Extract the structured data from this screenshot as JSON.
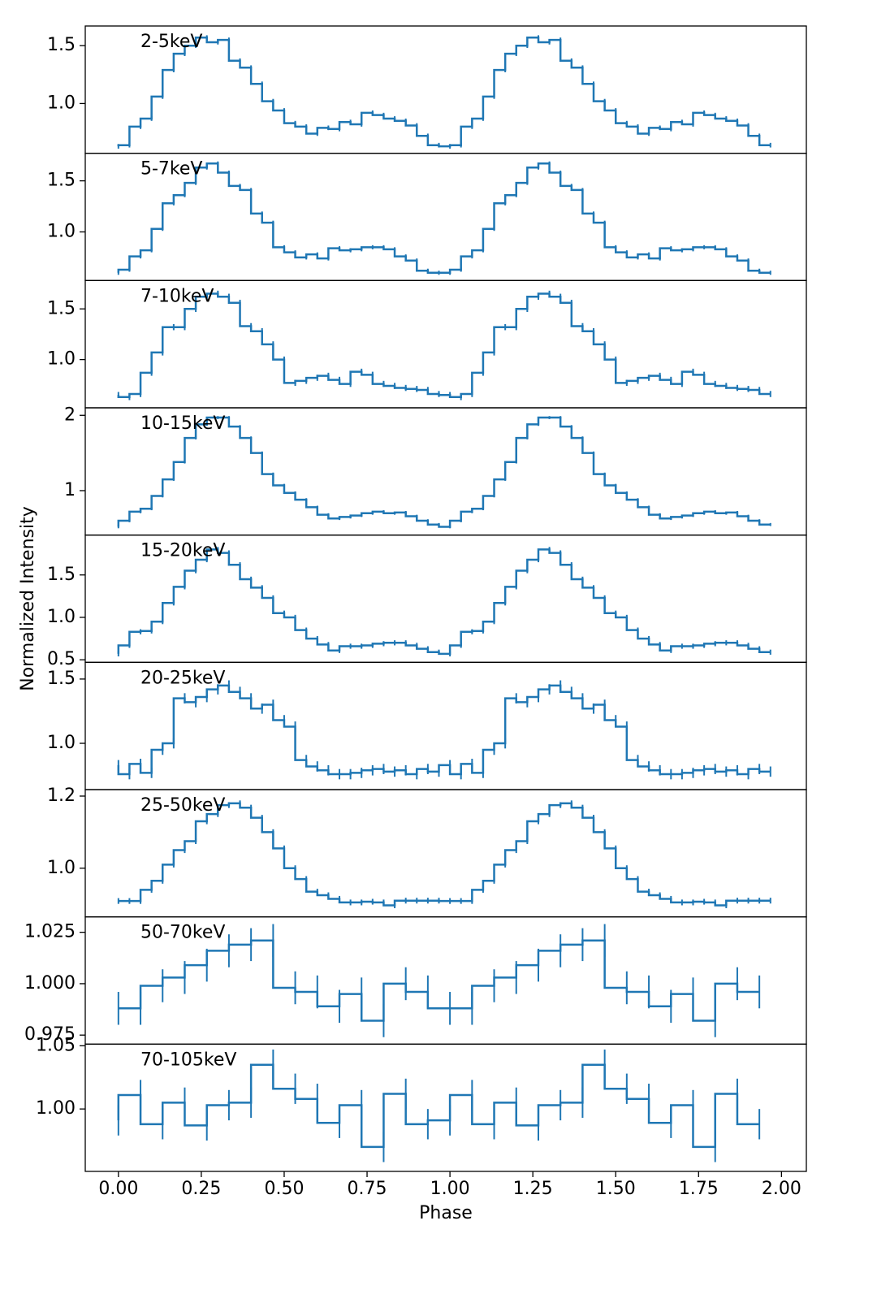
{
  "chart_data": [
    {
      "type": "step",
      "label": "2-5keV",
      "color": "#1f77b4",
      "ylabel": "Normalized Intensity",
      "x": [
        0,
        0.0333,
        0.0667,
        0.1,
        0.1333,
        0.1667,
        0.2,
        0.2333,
        0.2667,
        0.3,
        0.3333,
        0.3667,
        0.4,
        0.4333,
        0.4667,
        0.5,
        0.5333,
        0.5667,
        0.6,
        0.6333,
        0.6667,
        0.7,
        0.7333,
        0.7667,
        0.8,
        0.8333,
        0.8667,
        0.9,
        0.9333,
        0.9667,
        1,
        1.0333,
        1.0667,
        1.1,
        1.1333,
        1.1667,
        1.2,
        1.2333,
        1.2667,
        1.3,
        1.3333,
        1.3667,
        1.4,
        1.4333,
        1.4667,
        1.5,
        1.5333,
        1.5667,
        1.6,
        1.6333,
        1.6667,
        1.7,
        1.7333,
        1.7667,
        1.8,
        1.8333,
        1.8667,
        1.9,
        1.9333,
        1.9667
      ],
      "values": [
        0.63,
        0.64,
        0.8,
        0.87,
        1.06,
        1.29,
        1.43,
        1.5,
        1.57,
        1.53,
        1.55,
        1.37,
        1.31,
        1.17,
        1.02,
        0.94,
        0.83,
        0.8,
        0.74,
        0.79,
        0.78,
        0.84,
        0.82,
        0.92,
        0.9,
        0.87,
        0.85,
        0.81,
        0.72,
        0.64,
        0.63,
        0.64,
        0.8,
        0.87,
        1.06,
        1.29,
        1.43,
        1.5,
        1.57,
        1.53,
        1.55,
        1.37,
        1.31,
        1.17,
        1.02,
        0.94,
        0.83,
        0.8,
        0.74,
        0.79,
        0.78,
        0.84,
        0.82,
        0.92,
        0.9,
        0.87,
        0.85,
        0.81,
        0.72,
        0.64
      ],
      "yerr": 0.02,
      "ylim": [
        0.57,
        1.67
      ],
      "yticks": [
        {
          "value": 1,
          "label": "1.0"
        },
        1.5
      ]
    },
    {
      "type": "step",
      "label": "5-7keV",
      "color": "#1f77b4",
      "x": [
        0,
        0.0333,
        0.0667,
        0.1,
        0.1333,
        0.1667,
        0.2,
        0.2333,
        0.2667,
        0.3,
        0.3333,
        0.3667,
        0.4,
        0.4333,
        0.4667,
        0.5,
        0.5333,
        0.5667,
        0.6,
        0.6333,
        0.6667,
        0.7,
        0.7333,
        0.7667,
        0.8,
        0.8333,
        0.8667,
        0.9,
        0.9333,
        0.9667,
        1,
        1.0333,
        1.0667,
        1.1,
        1.1333,
        1.1667,
        1.2,
        1.2333,
        1.2667,
        1.3,
        1.3333,
        1.3667,
        1.4,
        1.4333,
        1.4667,
        1.5,
        1.5333,
        1.5667,
        1.6,
        1.6333,
        1.6667,
        1.7,
        1.7333,
        1.7667,
        1.8,
        1.8333,
        1.8667,
        1.9,
        1.9333,
        1.9667
      ],
      "values": [
        0.6,
        0.63,
        0.76,
        0.82,
        1.03,
        1.28,
        1.36,
        1.48,
        1.63,
        1.67,
        1.58,
        1.45,
        1.41,
        1.18,
        1.09,
        0.85,
        0.8,
        0.75,
        0.78,
        0.74,
        0.84,
        0.82,
        0.83,
        0.85,
        0.85,
        0.83,
        0.76,
        0.72,
        0.62,
        0.6,
        0.6,
        0.63,
        0.76,
        0.82,
        1.03,
        1.28,
        1.36,
        1.48,
        1.63,
        1.67,
        1.58,
        1.45,
        1.41,
        1.18,
        1.09,
        0.85,
        0.8,
        0.75,
        0.78,
        0.74,
        0.84,
        0.82,
        0.83,
        0.85,
        0.85,
        0.83,
        0.76,
        0.72,
        0.62,
        0.6
      ],
      "yerr": 0.02,
      "ylim": [
        0.524,
        1.77
      ],
      "yticks": [
        {
          "value": 1,
          "label": "1.0"
        },
        1.5
      ]
    },
    {
      "type": "step",
      "label": "7-10keV",
      "color": "#1f77b4",
      "x": [
        0,
        0.0333,
        0.0667,
        0.1,
        0.1333,
        0.1667,
        0.2,
        0.2333,
        0.2667,
        0.3,
        0.3333,
        0.3667,
        0.4,
        0.4333,
        0.4667,
        0.5,
        0.5333,
        0.5667,
        0.6,
        0.6333,
        0.6667,
        0.7,
        0.7333,
        0.7667,
        0.8,
        0.8333,
        0.8667,
        0.9,
        0.9333,
        0.9667,
        1,
        1.0333,
        1.0667,
        1.1,
        1.1333,
        1.1667,
        1.2,
        1.2333,
        1.2667,
        1.3,
        1.3333,
        1.3667,
        1.4,
        1.4333,
        1.4667,
        1.5,
        1.5333,
        1.5667,
        1.6,
        1.6333,
        1.6667,
        1.7,
        1.7333,
        1.7667,
        1.8,
        1.8333,
        1.8667,
        1.9,
        1.9333,
        1.9667
      ],
      "values": [
        0.65,
        0.63,
        0.66,
        0.87,
        1.07,
        1.32,
        1.32,
        1.5,
        1.62,
        1.65,
        1.62,
        1.56,
        1.33,
        1.28,
        1.15,
        1.0,
        0.77,
        0.79,
        0.82,
        0.84,
        0.8,
        0.76,
        0.88,
        0.85,
        0.76,
        0.74,
        0.72,
        0.71,
        0.7,
        0.66,
        0.65,
        0.63,
        0.66,
        0.87,
        1.07,
        1.32,
        1.32,
        1.5,
        1.62,
        1.65,
        1.62,
        1.56,
        1.33,
        1.28,
        1.15,
        1.0,
        0.77,
        0.79,
        0.82,
        0.84,
        0.8,
        0.76,
        0.88,
        0.85,
        0.76,
        0.74,
        0.72,
        0.71,
        0.7,
        0.66
      ],
      "yerr": 0.03,
      "ylim": [
        0.524,
        1.78
      ],
      "yticks": [
        {
          "value": 1,
          "label": "1.0"
        },
        1.5
      ]
    },
    {
      "type": "step",
      "label": "10-15keV",
      "color": "#1f77b4",
      "x": [
        0,
        0.0333,
        0.0667,
        0.1,
        0.1333,
        0.1667,
        0.2,
        0.2333,
        0.2667,
        0.3,
        0.3333,
        0.3667,
        0.4,
        0.4333,
        0.4667,
        0.5,
        0.5333,
        0.5667,
        0.6,
        0.6333,
        0.6667,
        0.7,
        0.7333,
        0.7667,
        0.8,
        0.8333,
        0.8667,
        0.9,
        0.9333,
        0.9667,
        1,
        1.0333,
        1.0667,
        1.1,
        1.1333,
        1.1667,
        1.2,
        1.2333,
        1.2667,
        1.3,
        1.3333,
        1.3667,
        1.4,
        1.4333,
        1.4667,
        1.5,
        1.5333,
        1.5667,
        1.6,
        1.6333,
        1.6667,
        1.7,
        1.7333,
        1.7667,
        1.8,
        1.8333,
        1.8667,
        1.9,
        1.9333,
        1.9667
      ],
      "values": [
        0.52,
        0.6,
        0.72,
        0.76,
        0.93,
        1.15,
        1.38,
        1.7,
        1.88,
        1.97,
        1.97,
        1.85,
        1.7,
        1.5,
        1.22,
        1.07,
        0.97,
        0.88,
        0.78,
        0.68,
        0.63,
        0.65,
        0.67,
        0.7,
        0.72,
        0.7,
        0.71,
        0.66,
        0.6,
        0.55,
        0.52,
        0.6,
        0.72,
        0.76,
        0.93,
        1.15,
        1.38,
        1.7,
        1.88,
        1.97,
        1.97,
        1.85,
        1.7,
        1.5,
        1.22,
        1.07,
        0.97,
        0.88,
        0.78,
        0.68,
        0.63,
        0.65,
        0.67,
        0.7,
        0.72,
        0.7,
        0.71,
        0.66,
        0.6,
        0.55
      ],
      "yerr": 0.02,
      "ylim": [
        0.41,
        2.1
      ],
      "yticks": [
        1,
        2
      ]
    },
    {
      "type": "step",
      "label": "15-20keV",
      "color": "#1f77b4",
      "x": [
        0,
        0.0333,
        0.0667,
        0.1,
        0.1333,
        0.1667,
        0.2,
        0.2333,
        0.2667,
        0.3,
        0.3333,
        0.3667,
        0.4,
        0.4333,
        0.4667,
        0.5,
        0.5333,
        0.5667,
        0.6,
        0.6333,
        0.6667,
        0.7,
        0.7333,
        0.7667,
        0.8,
        0.8333,
        0.8667,
        0.9,
        0.9333,
        0.9667,
        1,
        1.0333,
        1.0667,
        1.1,
        1.1333,
        1.1667,
        1.2,
        1.2333,
        1.2667,
        1.3,
        1.3333,
        1.3667,
        1.4,
        1.4333,
        1.4667,
        1.5,
        1.5333,
        1.5667,
        1.6,
        1.6333,
        1.6667,
        1.7,
        1.7333,
        1.7667,
        1.8,
        1.8333,
        1.8667,
        1.9,
        1.9333,
        1.9667
      ],
      "values": [
        0.57,
        0.67,
        0.83,
        0.84,
        0.95,
        1.17,
        1.36,
        1.55,
        1.68,
        1.8,
        1.76,
        1.62,
        1.45,
        1.35,
        1.23,
        1.05,
        1.0,
        0.85,
        0.75,
        0.68,
        0.61,
        0.66,
        0.66,
        0.67,
        0.69,
        0.7,
        0.7,
        0.67,
        0.63,
        0.59,
        0.57,
        0.67,
        0.83,
        0.84,
        0.95,
        1.17,
        1.36,
        1.55,
        1.68,
        1.8,
        1.76,
        1.62,
        1.45,
        1.35,
        1.23,
        1.05,
        1.0,
        0.85,
        0.75,
        0.68,
        0.61,
        0.66,
        0.66,
        0.67,
        0.69,
        0.7,
        0.7,
        0.67,
        0.63,
        0.59
      ],
      "yerr": 0.03,
      "ylim": [
        0.47,
        1.97
      ],
      "yticks": [
        0.5,
        {
          "value": 1,
          "label": "1.0"
        },
        1.5
      ]
    },
    {
      "type": "step",
      "label": "20-25keV",
      "color": "#1f77b4",
      "x": [
        0,
        0.0333,
        0.0667,
        0.1,
        0.1333,
        0.1667,
        0.2,
        0.2333,
        0.2667,
        0.3,
        0.3333,
        0.3667,
        0.4,
        0.4333,
        0.4667,
        0.5,
        0.5333,
        0.5667,
        0.6,
        0.6333,
        0.6667,
        0.7,
        0.7333,
        0.7667,
        0.8,
        0.8333,
        0.8667,
        0.9,
        0.9333,
        0.9667,
        1,
        1.0333,
        1.0667,
        1.1,
        1.1333,
        1.1667,
        1.2,
        1.2333,
        1.2667,
        1.3,
        1.3333,
        1.3667,
        1.4,
        1.4333,
        1.4667,
        1.5,
        1.5333,
        1.5667,
        1.6,
        1.6333,
        1.6667,
        1.7,
        1.7333,
        1.7667,
        1.8,
        1.8333,
        1.8667,
        1.9,
        1.9333,
        1.9667
      ],
      "values": [
        0.83,
        0.76,
        0.84,
        0.77,
        0.95,
        1.0,
        1.35,
        1.32,
        1.36,
        1.42,
        1.45,
        1.4,
        1.35,
        1.27,
        1.3,
        1.18,
        1.13,
        0.87,
        0.82,
        0.79,
        0.76,
        0.76,
        0.77,
        0.79,
        0.8,
        0.78,
        0.79,
        0.76,
        0.8,
        0.78,
        0.83,
        0.76,
        0.84,
        0.77,
        0.95,
        1.0,
        1.35,
        1.32,
        1.36,
        1.42,
        1.45,
        1.4,
        1.35,
        1.27,
        1.3,
        1.18,
        1.13,
        0.87,
        0.82,
        0.79,
        0.76,
        0.76,
        0.77,
        0.79,
        0.8,
        0.78,
        0.79,
        0.76,
        0.8,
        0.78
      ],
      "yerr": 0.04,
      "ylim": [
        0.64,
        1.63
      ],
      "yticks": [
        {
          "value": 1,
          "label": "1.0"
        },
        1.5
      ]
    },
    {
      "type": "step",
      "label": "25-50keV",
      "color": "#1f77b4",
      "x": [
        0,
        0.0333,
        0.0667,
        0.1,
        0.1333,
        0.1667,
        0.2,
        0.2333,
        0.2667,
        0.3,
        0.3333,
        0.3667,
        0.4,
        0.4333,
        0.4667,
        0.5,
        0.5333,
        0.5667,
        0.6,
        0.6333,
        0.6667,
        0.7,
        0.7333,
        0.7667,
        0.8,
        0.8333,
        0.8667,
        0.9,
        0.9333,
        0.9667,
        1,
        1.0333,
        1.0667,
        1.1,
        1.1333,
        1.1667,
        1.2,
        1.2333,
        1.2667,
        1.3,
        1.3333,
        1.3667,
        1.4,
        1.4333,
        1.4667,
        1.5,
        1.5333,
        1.5667,
        1.6,
        1.6333,
        1.6667,
        1.7,
        1.7333,
        1.7667,
        1.8,
        1.8333,
        1.8667,
        1.9,
        1.9333,
        1.9667
      ],
      "values": [
        0.909,
        0.909,
        0.909,
        0.94,
        0.965,
        1.01,
        1.05,
        1.075,
        1.13,
        1.15,
        1.175,
        1.18,
        1.168,
        1.14,
        1.1,
        1.055,
        1.0,
        0.97,
        0.935,
        0.925,
        0.915,
        0.905,
        0.905,
        0.907,
        0.905,
        0.897,
        0.91,
        0.91,
        0.91,
        0.91,
        0.909,
        0.909,
        0.909,
        0.94,
        0.965,
        1.01,
        1.05,
        1.075,
        1.13,
        1.15,
        1.175,
        1.18,
        1.168,
        1.14,
        1.1,
        1.055,
        1.0,
        0.97,
        0.935,
        0.925,
        0.915,
        0.905,
        0.905,
        0.907,
        0.905,
        0.897,
        0.91,
        0.91,
        0.91,
        0.91
      ],
      "yerr": 0.008,
      "ylim": [
        0.865,
        1.218
      ],
      "yticks": [
        {
          "value": 1,
          "label": "1.0"
        },
        1.2
      ]
    },
    {
      "type": "step",
      "label": "50-70keV",
      "color": "#1f77b4",
      "x": [
        0,
        0.0667,
        0.1333,
        0.2,
        0.2667,
        0.3333,
        0.4,
        0.4667,
        0.5333,
        0.6,
        0.6667,
        0.7333,
        0.8,
        0.8667,
        0.9333,
        1,
        1.0667,
        1.1333,
        1.2,
        1.2667,
        1.3333,
        1.4,
        1.4667,
        1.5333,
        1.6,
        1.6667,
        1.7333,
        1.8,
        1.8667,
        1.9333
      ],
      "values": [
        0.988,
        0.988,
        0.999,
        1.003,
        1.009,
        1.016,
        1.019,
        1.021,
        0.998,
        0.996,
        0.989,
        0.995,
        0.982,
        1.0,
        0.996,
        0.988,
        0.988,
        0.999,
        1.003,
        1.009,
        1.016,
        1.019,
        1.021,
        0.998,
        0.996,
        0.989,
        0.995,
        0.982,
        1.0,
        0.996
      ],
      "yerr": 0.008,
      "ylim": [
        0.9706,
        1.0325
      ],
      "yticks": [
        0.975,
        {
          "value": 1,
          "label": "1.000"
        },
        1.025
      ]
    },
    {
      "type": "step",
      "label": "70-105keV",
      "color": "#1f77b4",
      "x": [
        0,
        0.0667,
        0.1333,
        0.2,
        0.2667,
        0.3333,
        0.4,
        0.4667,
        0.5333,
        0.6,
        0.6667,
        0.7333,
        0.8,
        0.8667,
        0.9333,
        1,
        1.0667,
        1.1333,
        1.2,
        1.2667,
        1.3333,
        1.4,
        1.4667,
        1.5333,
        1.6,
        1.6667,
        1.7333,
        1.8,
        1.8667,
        1.9333
      ],
      "values": [
        0.991,
        1.011,
        0.988,
        1.005,
        0.987,
        1.003,
        1.005,
        1.035,
        1.016,
        1.008,
        0.989,
        1.003,
        0.97,
        1.012,
        0.988,
        0.991,
        1.011,
        0.988,
        1.005,
        0.987,
        1.003,
        1.005,
        1.035,
        1.016,
        1.008,
        0.989,
        1.003,
        0.97,
        1.012,
        0.988
      ],
      "yerr": 0.012,
      "ylim": [
        0.9506,
        1.0513
      ],
      "yticks": [
        {
          "value": 1,
          "label": "1.00"
        },
        1.05
      ],
      "xlabel": "Phase",
      "xlim": [
        -0.1,
        2.075
      ],
      "xticks": [
        {
          "value": 0,
          "label": "0.00"
        },
        {
          "value": 0.25,
          "label": "0.25"
        },
        {
          "value": 0.5,
          "label": "0.50"
        },
        {
          "value": 0.75,
          "label": "0.75"
        },
        {
          "value": 1,
          "label": "1.00"
        },
        {
          "value": 1.25,
          "label": "1.25"
        },
        {
          "value": 1.5,
          "label": "1.50"
        },
        {
          "value": 1.75,
          "label": "1.75"
        },
        {
          "value": 2,
          "label": "2.00"
        }
      ]
    }
  ]
}
